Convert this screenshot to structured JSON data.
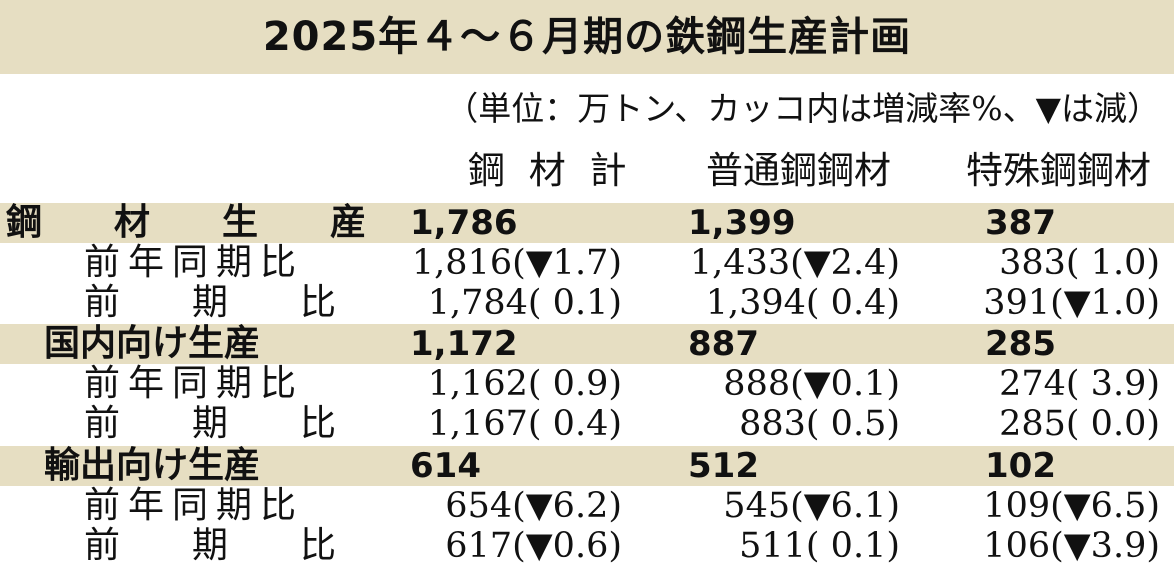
{
  "title": "2025年４～６月期の鉄鋼生産計画",
  "unit_note": "（単位：万トン、カッコ内は増減率%、▼は減）",
  "chart_data": {
    "type": "table",
    "columns": [
      "鋼 材 計",
      "普通鋼鋼材",
      "特殊鋼鋼材"
    ],
    "sections": [
      {
        "label": "鋼　　材　　生　　産",
        "values": [
          "1,786",
          "1,399",
          "387"
        ],
        "rows": [
          {
            "label": "前年同期比",
            "values": [
              "1,816(▼1.7)",
              "1,433(▼2.4)",
              "383( 1.0)"
            ]
          },
          {
            "label": "前　　期　　比",
            "values": [
              "1,784( 0.1)",
              "1,394( 0.4)",
              "391(▼1.0)"
            ]
          }
        ]
      },
      {
        "label": "国内向け生産",
        "values": [
          "1,172",
          "887",
          "285"
        ],
        "rows": [
          {
            "label": "前年同期比",
            "values": [
              "1,162( 0.9)",
              "888(▼0.1)",
              "274( 3.9)"
            ]
          },
          {
            "label": "前　　期　　比",
            "values": [
              "1,167( 0.4)",
              "883( 0.5)",
              "285( 0.0)"
            ]
          }
        ]
      },
      {
        "label": "輸出向け生産",
        "values": [
          "614",
          "512",
          "102"
        ],
        "rows": [
          {
            "label": "前年同期比",
            "values": [
              "654(▼6.2)",
              "545(▼6.1)",
              "109(▼6.5)"
            ]
          },
          {
            "label": "前　　期　　比",
            "values": [
              "617(▼0.6)",
              "511( 0.1)",
              "106(▼3.9)"
            ]
          }
        ]
      }
    ]
  },
  "colors": {
    "band": "#e6dec2",
    "text": "#111111",
    "background": "#ffffff"
  }
}
